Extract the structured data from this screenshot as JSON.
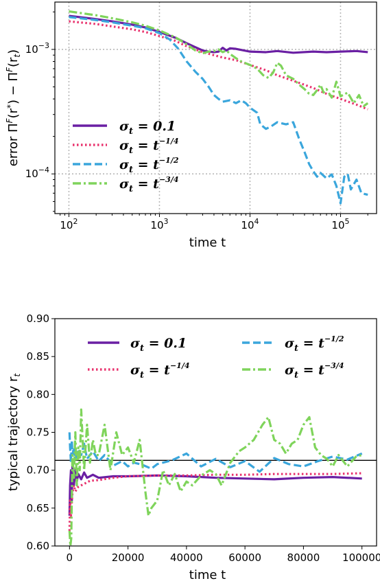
{
  "colors": {
    "purple": "#6a1fa3",
    "pink": "#e8336e",
    "blue": "#3aa6dc",
    "green": "#7fd45b",
    "reference_line": "#000000"
  },
  "chart_data": [
    {
      "type": "line",
      "xscale": "log",
      "yscale": "log",
      "xlabel": "time t",
      "ylabel": "error Π^F(r*) − Π^F(r_t)",
      "xlim": [
        70,
        250000
      ],
      "ylim": [
        4.8e-05,
        0.0024
      ],
      "xtick_labels": [
        "10^2",
        "10^3",
        "10^4",
        "10^5"
      ],
      "ytick_labels": [
        "10^-3",
        "10^-4"
      ],
      "grid": true,
      "legend_position": "lower-left",
      "series": [
        {
          "name": "σ_t = 0.1",
          "color": "purple",
          "style": "solid",
          "x": [
            100,
            200,
            300,
            500,
            700,
            1000,
            1500,
            2000,
            2500,
            3000,
            3500,
            4000,
            4500,
            5000,
            5500,
            6000,
            7000,
            8000,
            10000,
            15000,
            20000,
            30000,
            50000,
            70000,
            100000,
            150000,
            200000
          ],
          "y": [
            0.00186,
            0.00175,
            0.00168,
            0.00158,
            0.0015,
            0.00138,
            0.00124,
            0.00112,
            0.00104,
            0.00098,
            0.00096,
            0.00095,
            0.00096,
            0.00103,
            0.00098,
            0.00102,
            0.00101,
            0.00099,
            0.00096,
            0.00095,
            0.00097,
            0.00094,
            0.00096,
            0.00095,
            0.00096,
            0.00097,
            0.00095
          ]
        },
        {
          "name": "σ_t = t^(-1/4)",
          "color": "pink",
          "style": "dotted",
          "x": [
            100,
            200,
            300,
            500,
            700,
            1000,
            1500,
            2000,
            3000,
            5000,
            7000,
            10000,
            15000,
            20000,
            30000,
            50000,
            70000,
            100000,
            150000,
            200000
          ],
          "y": [
            0.00168,
            0.0016,
            0.00153,
            0.00145,
            0.00138,
            0.00128,
            0.00117,
            0.00106,
            0.00095,
            0.00086,
            0.00082,
            0.00075,
            0.00068,
            0.00062,
            0.00056,
            0.00049,
            0.00044,
            0.0004,
            0.00036,
            0.00033
          ]
        },
        {
          "name": "σ_t = t^(-1/2)",
          "color": "blue",
          "style": "dashed",
          "x": [
            100,
            200,
            300,
            500,
            700,
            1000,
            1300,
            1600,
            2000,
            2500,
            3000,
            3500,
            4000,
            4500,
            5000,
            6000,
            7000,
            8000,
            9000,
            10000,
            12000,
            13000,
            15000,
            17000,
            20000,
            25000,
            30000,
            35000,
            40000,
            45000,
            50000,
            55000,
            60000,
            70000,
            80000,
            90000,
            100000,
            110000,
            120000,
            130000,
            150000,
            170000,
            200000
          ],
          "y": [
            0.00182,
            0.00172,
            0.00165,
            0.00155,
            0.00148,
            0.00135,
            0.0012,
            0.00102,
            0.0008,
            0.00066,
            0.00058,
            0.0005,
            0.00043,
            0.0004,
            0.00038,
            0.00039,
            0.00037,
            0.00039,
            0.00037,
            0.00034,
            0.00031,
            0.00025,
            0.00023,
            0.00024,
            0.00026,
            0.00025,
            0.00026,
            0.00019,
            0.00015,
            0.00012,
            0.000105,
            9.5e-05,
            0.000102,
            9.2e-05,
            9.9e-05,
            8e-05,
            5.8e-05,
            9.5e-05,
            0.0001,
            7.5e-05,
            9e-05,
            7e-05,
            6.8e-05
          ]
        },
        {
          "name": "σ_t = t^(-3/4)",
          "color": "green",
          "style": "dashdot",
          "x": [
            100,
            200,
            300,
            500,
            700,
            1000,
            1500,
            2000,
            2500,
            3000,
            3500,
            4000,
            4500,
            5000,
            5500,
            6000,
            7000,
            8000,
            10000,
            12000,
            14000,
            16000,
            18000,
            20000,
            22000,
            25000,
            30000,
            35000,
            40000,
            45000,
            50000,
            55000,
            60000,
            65000,
            70000,
            80000,
            90000,
            100000,
            120000,
            140000,
            160000,
            180000,
            200000
          ],
          "y": [
            0.00202,
            0.00188,
            0.00178,
            0.00165,
            0.00155,
            0.00142,
            0.00125,
            0.0011,
            0.00098,
            0.00093,
            0.00096,
            0.00097,
            0.001,
            0.00095,
            0.00098,
            0.00092,
            0.00085,
            0.0008,
            0.00075,
            0.0007,
            0.00062,
            0.00059,
            0.00065,
            0.00078,
            0.00074,
            0.00062,
            0.00058,
            0.00052,
            0.00048,
            0.00044,
            0.00043,
            0.00047,
            0.00052,
            0.00045,
            0.00048,
            0.00041,
            0.00055,
            0.00042,
            0.00045,
            0.00037,
            0.00043,
            0.00035,
            0.00037
          ]
        }
      ]
    },
    {
      "type": "line",
      "xlabel": "time t",
      "ylabel": "typical trajectory r_t",
      "xlim": [
        -5000,
        105000
      ],
      "ylim": [
        0.6,
        0.9
      ],
      "xtick_labels": [
        "0",
        "20000",
        "40000",
        "60000",
        "80000",
        "100000"
      ],
      "ytick_labels": [
        "0.60",
        "0.65",
        "0.70",
        "0.75",
        "0.80",
        "0.85",
        "0.90"
      ],
      "grid": false,
      "legend_position": "upper-center",
      "reference_y": 0.713,
      "series": [
        {
          "name": "σ_t = 0.1",
          "color": "purple",
          "style": "solid",
          "x": [
            0,
            200,
            500,
            800,
            1000,
            1500,
            2000,
            2500,
            3000,
            4000,
            5000,
            6000,
            8000,
            10000,
            15000,
            20000,
            30000,
            40000,
            50000,
            60000,
            70000,
            80000,
            90000,
            100000
          ],
          "y": [
            0.64,
            0.68,
            0.7,
            0.66,
            0.705,
            0.68,
            0.7,
            0.685,
            0.695,
            0.688,
            0.697,
            0.69,
            0.694,
            0.69,
            0.692,
            0.692,
            0.693,
            0.692,
            0.69,
            0.689,
            0.688,
            0.69,
            0.691,
            0.689
          ]
        },
        {
          "name": "σ_t = t^(-1/4)",
          "color": "pink",
          "style": "dotted",
          "x": [
            0,
            200,
            500,
            1000,
            1500,
            2000,
            3000,
            5000,
            7000,
            10000,
            15000,
            20000,
            30000,
            40000,
            50000,
            60000,
            70000,
            80000,
            90000,
            100000
          ],
          "y": [
            0.62,
            0.66,
            0.64,
            0.67,
            0.68,
            0.672,
            0.678,
            0.682,
            0.686,
            0.687,
            0.69,
            0.692,
            0.693,
            0.693,
            0.694,
            0.694,
            0.695,
            0.695,
            0.695,
            0.696
          ]
        },
        {
          "name": "σ_t = t^(-1/2)",
          "color": "blue",
          "style": "dashed",
          "x": [
            0,
            200,
            500,
            800,
            1000,
            1500,
            2000,
            3000,
            4000,
            5000,
            6000,
            8000,
            10000,
            12000,
            15000,
            18000,
            20000,
            22000,
            25000,
            28000,
            30000,
            35000,
            40000,
            45000,
            50000,
            55000,
            60000,
            65000,
            70000,
            75000,
            80000,
            85000,
            90000,
            95000,
            100000
          ],
          "y": [
            0.75,
            0.73,
            0.71,
            0.74,
            0.72,
            0.73,
            0.715,
            0.728,
            0.72,
            0.735,
            0.715,
            0.725,
            0.712,
            0.72,
            0.706,
            0.712,
            0.705,
            0.71,
            0.707,
            0.702,
            0.708,
            0.713,
            0.722,
            0.705,
            0.715,
            0.704,
            0.712,
            0.698,
            0.716,
            0.708,
            0.705,
            0.712,
            0.718,
            0.714,
            0.722
          ]
        },
        {
          "name": "σ_t = t^(-3/4)",
          "color": "green",
          "style": "dashdot",
          "x": [
            0,
            300,
            600,
            1000,
            1500,
            2000,
            2500,
            3000,
            3500,
            4000,
            5000,
            6000,
            7000,
            8000,
            9000,
            10000,
            12000,
            14000,
            16000,
            18000,
            20000,
            22000,
            24000,
            26000,
            27000,
            28000,
            30000,
            32000,
            34000,
            36000,
            38000,
            40000,
            42000,
            45000,
            48000,
            50000,
            52000,
            55000,
            58000,
            60000,
            63000,
            66000,
            68000,
            70000,
            72000,
            74000,
            76000,
            78000,
            80000,
            82000,
            84000,
            86000,
            88000,
            90000,
            92000,
            95000,
            98000,
            100000
          ],
          "y": [
            0.62,
            0.6,
            0.61,
            0.72,
            0.69,
            0.75,
            0.68,
            0.73,
            0.7,
            0.78,
            0.7,
            0.76,
            0.71,
            0.74,
            0.72,
            0.72,
            0.76,
            0.7,
            0.75,
            0.72,
            0.73,
            0.71,
            0.74,
            0.67,
            0.64,
            0.65,
            0.66,
            0.7,
            0.68,
            0.695,
            0.672,
            0.685,
            0.68,
            0.693,
            0.7,
            0.695,
            0.68,
            0.71,
            0.725,
            0.73,
            0.74,
            0.76,
            0.77,
            0.74,
            0.735,
            0.722,
            0.735,
            0.74,
            0.76,
            0.77,
            0.73,
            0.72,
            0.715,
            0.705,
            0.72,
            0.705,
            0.718,
            0.72
          ]
        }
      ]
    }
  ]
}
